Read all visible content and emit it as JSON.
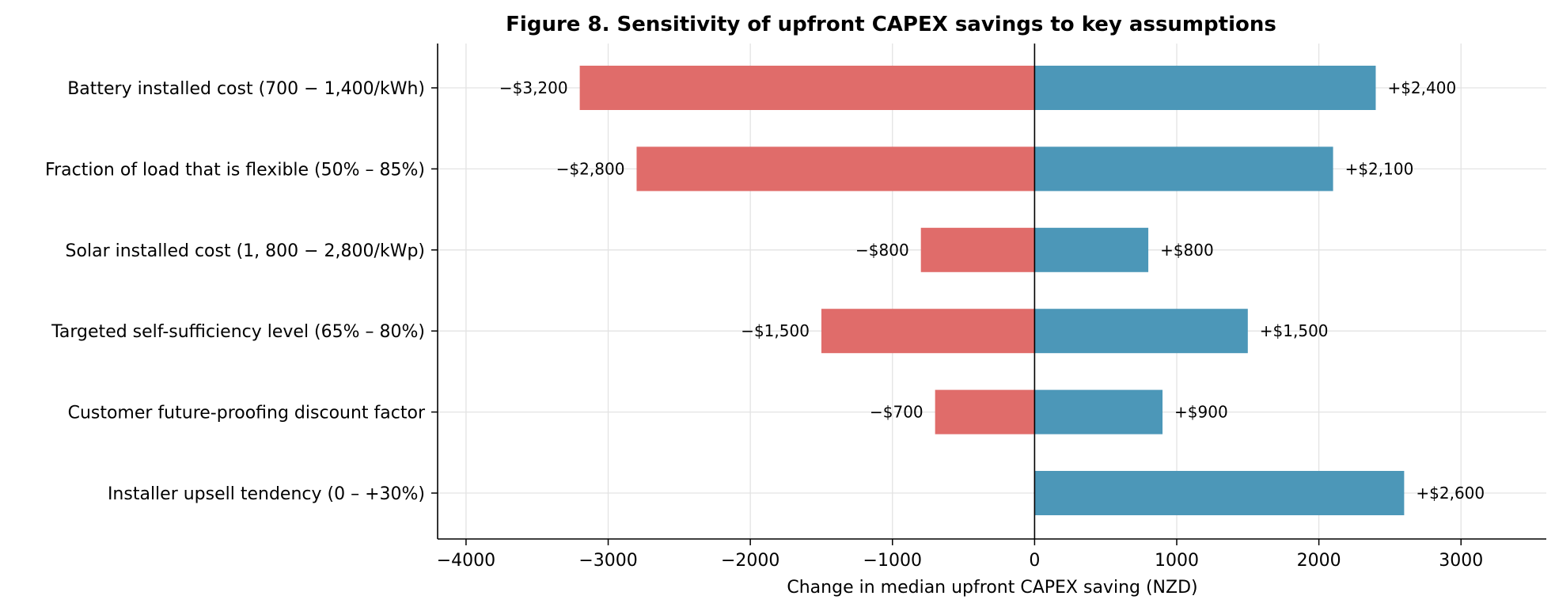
{
  "chart_data": {
    "type": "bar",
    "orientation": "horizontal",
    "title": "Figure 8. Sensitivity of upfront CAPEX savings to key assumptions",
    "xlabel": "Change in median upfront CAPEX saving (NZD)",
    "ylabel": "",
    "xlim": [
      -4200,
      3600
    ],
    "xticks": [
      -4000,
      -3000,
      -2000,
      -1000,
      0,
      1000,
      2000,
      3000
    ],
    "xtick_labels": [
      "−4000",
      "−3000",
      "−2000",
      "−1000",
      "0",
      "1000",
      "2000",
      "3000"
    ],
    "grid": true,
    "categories": [
      "Battery installed cost (700 − 1,400/kWh)",
      "Fraction of load that is flexible (50% – 85%)",
      "Solar installed cost (1, 800 − 2,800/kWp)",
      "Targeted self-sufficiency level (65% – 80%)",
      "Customer future-proofing discount factor",
      "Installer upsell tendency (0 – +30%)"
    ],
    "series": [
      {
        "color": "#e06c6a",
        "values": [
          -3200,
          -2800,
          -800,
          -1500,
          -700,
          0
        ],
        "labels": [
          "−$3,200",
          "−$2,800",
          "−$800",
          "−$1,500",
          "−$700",
          ""
        ]
      },
      {
        "color": "#4c97b8",
        "values": [
          2400,
          2100,
          800,
          1500,
          900,
          2600
        ],
        "labels": [
          "+$2,400",
          "+$2,100",
          "+$800",
          "+$1,500",
          "+$900",
          "+$2,600"
        ]
      }
    ]
  }
}
